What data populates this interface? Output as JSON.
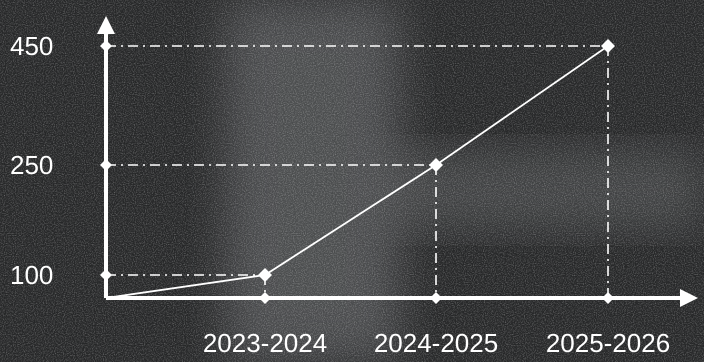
{
  "chart_data": {
    "type": "line",
    "title": "",
    "xlabel": "",
    "ylabel": "",
    "categories": [
      "2023-2024",
      "2024-2025",
      "2025-2026"
    ],
    "series": [
      {
        "values": [
          100,
          250,
          450
        ]
      }
    ],
    "y_tick_labels": [
      "100",
      "250",
      "450"
    ],
    "y_ticks": [
      100,
      250,
      450
    ],
    "ylim": [
      0,
      500
    ],
    "grid": false,
    "guide_lines": "dash-dot drop lines from each point to both axes",
    "background": "dark grass-texture photo",
    "line_color": "#ffffff",
    "background_color": "#2a2b2c"
  }
}
